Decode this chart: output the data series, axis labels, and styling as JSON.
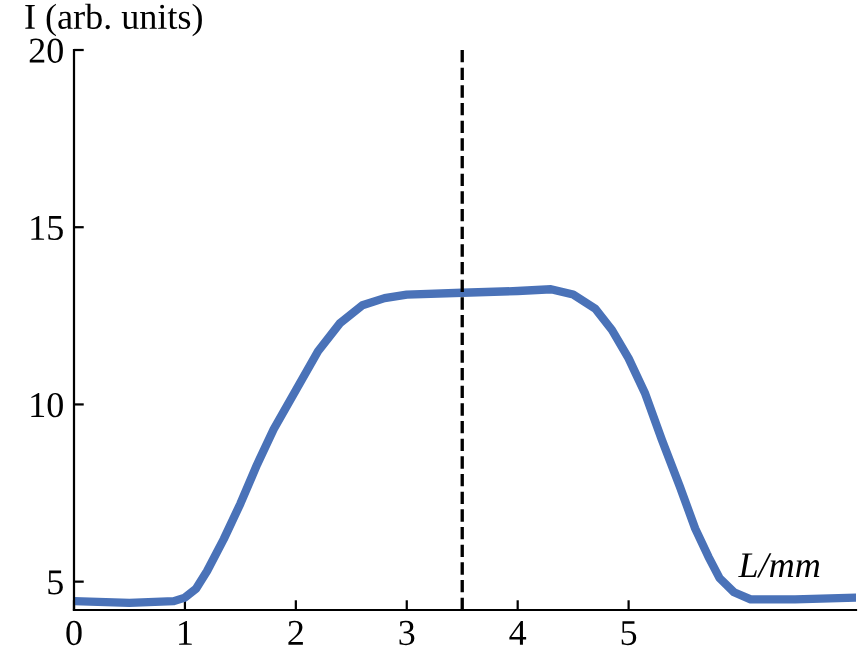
{
  "chart_data": {
    "type": "line",
    "xlabel": "L/mm",
    "ylabel": "I (arb. units)",
    "xlim": [
      0,
      7.05
    ],
    "ylim": [
      4.2,
      20
    ],
    "xticks": [
      0,
      1,
      2,
      3,
      4,
      5
    ],
    "yticks": [
      5,
      10,
      15,
      20
    ],
    "grid": false,
    "series": [
      {
        "color": "#4a72b8",
        "x": [
          0,
          0.5,
          0.9,
          1.0,
          1.1,
          1.2,
          1.35,
          1.5,
          1.65,
          1.8,
          2.0,
          2.2,
          2.4,
          2.6,
          2.8,
          3.0,
          3.5,
          4.0,
          4.3,
          4.5,
          4.7,
          4.85,
          5.0,
          5.15,
          5.3,
          5.46,
          5.6,
          5.72,
          5.82,
          5.95,
          6.1,
          6.5,
          7.05
        ],
        "values": [
          4.45,
          4.4,
          4.45,
          4.55,
          4.8,
          5.3,
          6.2,
          7.2,
          8.3,
          9.3,
          10.4,
          11.5,
          12.3,
          12.8,
          13.0,
          13.1,
          13.15,
          13.2,
          13.25,
          13.1,
          12.7,
          12.1,
          11.3,
          10.3,
          9.0,
          7.7,
          6.5,
          5.7,
          5.1,
          4.7,
          4.5,
          4.5,
          4.55
        ]
      }
    ],
    "ref_lines": [
      {
        "axis": "x",
        "value": 3.5,
        "line_style": "dashed",
        "color": "#000000"
      }
    ]
  }
}
